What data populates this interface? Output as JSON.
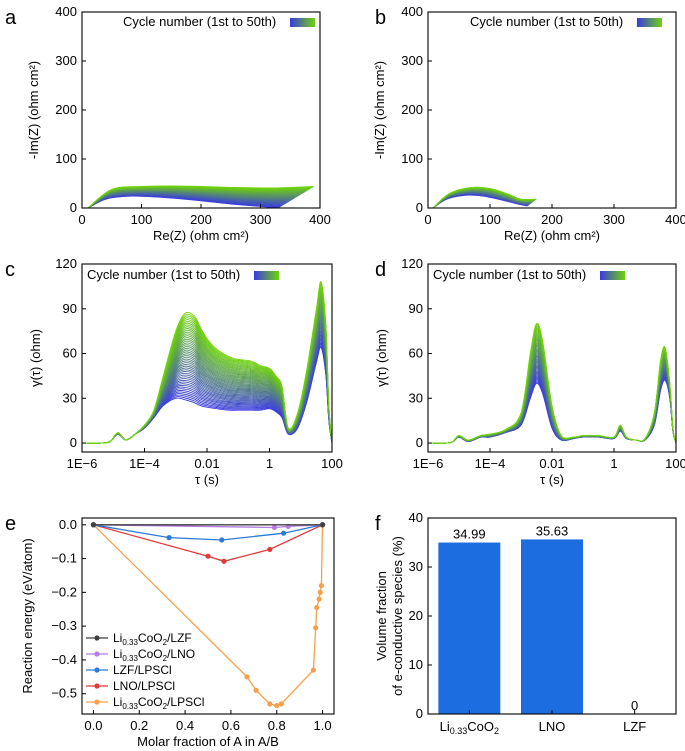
{
  "figure": {
    "colors": {
      "blue": "#3a3ae0",
      "green": "#6fd40a",
      "bar": "#1c6de0",
      "axis": "#000000"
    }
  },
  "chart_data": [
    {
      "id": "a",
      "panel_label": "a",
      "type": "line",
      "title": "",
      "xlabel": "Re(Z) (ohm cm²)",
      "ylabel": "-Im(Z) (ohm cm²)",
      "xlim": [
        0,
        400
      ],
      "ylim": [
        0,
        400
      ],
      "xticks": [
        0,
        100,
        200,
        300,
        400
      ],
      "yticks": [
        0,
        100,
        200,
        300,
        400
      ],
      "legend": "Cycle number (1st to 50th)",
      "legend_position": "top-right",
      "series_family": {
        "count": 50,
        "color_start": "#3a3ae0",
        "color_end": "#6fd40a",
        "first": {
          "x": [
            10,
            40,
            80,
            130,
            190,
            250,
            300,
            330
          ],
          "y": [
            0,
            18,
            24,
            22,
            16,
            8,
            3,
            0
          ]
        },
        "last": {
          "x": [
            10,
            50,
            100,
            150,
            200,
            260,
            320,
            390
          ],
          "y": [
            0,
            38,
            44,
            45,
            44,
            42,
            41,
            44
          ]
        }
      }
    },
    {
      "id": "b",
      "panel_label": "b",
      "type": "line",
      "title": "",
      "xlabel": "Re(Z) (ohm cm²)",
      "ylabel": "-Im(Z) (ohm cm²)",
      "xlim": [
        0,
        400
      ],
      "ylim": [
        0,
        400
      ],
      "xticks": [
        0,
        100,
        200,
        300,
        400
      ],
      "yticks": [
        0,
        100,
        200,
        300,
        400
      ],
      "legend": "Cycle number (1st to 50th)",
      "legend_position": "top-right",
      "series_family": {
        "count": 50,
        "color_start": "#3a3ae0",
        "color_end": "#6fd40a",
        "first": {
          "x": [
            8,
            30,
            60,
            90,
            120,
            145,
            160
          ],
          "y": [
            0,
            18,
            26,
            24,
            16,
            8,
            4
          ]
        },
        "last": {
          "x": [
            8,
            35,
            70,
            100,
            130,
            150,
            175
          ],
          "y": [
            0,
            30,
            42,
            40,
            28,
            18,
            18
          ]
        }
      }
    },
    {
      "id": "c",
      "panel_label": "c",
      "type": "line",
      "title": "",
      "xlabel": "τ (s)",
      "ylabel": "γ(τ) (ohm)",
      "xscale": "log",
      "xlim_log10": [
        -6,
        2
      ],
      "ylim": [
        -6,
        120
      ],
      "xticks": [
        "1E−6",
        "1E−4",
        "0.01",
        "1",
        "100"
      ],
      "yticks": [
        0,
        30,
        60,
        90,
        120
      ],
      "legend": "Cycle number (1st to 50th)",
      "legend_position": "top-left",
      "series_family": {
        "count": 50,
        "color_start": "#3a3ae0",
        "color_end": "#6fd40a",
        "log_tau": [
          -6,
          -5.4,
          -5.1,
          -4.85,
          -4.6,
          -4.3,
          -4,
          -3.7,
          -3.4,
          -3,
          -2.7,
          -2.4,
          -2.2,
          -2,
          -1.7,
          -1.3,
          -1,
          -0.6,
          -0.3,
          0,
          0.2,
          0.4,
          0.6,
          0.9,
          1.2,
          1.5,
          1.65,
          1.8,
          1.9,
          2
        ],
        "first": [
          0,
          0,
          1,
          6,
          2,
          6,
          10,
          17,
          25,
          30,
          29,
          27,
          25,
          24,
          23,
          22,
          22,
          22,
          22,
          23,
          21,
          17,
          6,
          10,
          28,
          54,
          64,
          46,
          15,
          0
        ],
        "last": [
          0,
          0,
          1,
          7,
          2,
          6,
          12,
          22,
          45,
          75,
          87,
          85,
          77,
          70,
          63,
          58,
          56,
          55,
          52,
          50,
          45,
          38,
          10,
          20,
          50,
          90,
          108,
          80,
          25,
          0
        ]
      }
    },
    {
      "id": "d",
      "panel_label": "d",
      "type": "line",
      "title": "",
      "xlabel": "τ (s)",
      "ylabel": "γ(τ) (ohm)",
      "xscale": "log",
      "xlim_log10": [
        -6,
        2
      ],
      "ylim": [
        -6,
        120
      ],
      "xticks": [
        "1E−6",
        "1E−4",
        "0.01",
        "1",
        "100"
      ],
      "yticks": [
        0,
        30,
        60,
        90,
        120
      ],
      "legend": "Cycle number (1st to 50th)",
      "legend_position": "top-left",
      "series_family": {
        "count": 50,
        "color_start": "#3a3ae0",
        "color_end": "#6fd40a",
        "log_tau": [
          -6,
          -5.4,
          -5.2,
          -5,
          -4.7,
          -4.3,
          -4,
          -3.5,
          -3,
          -2.7,
          -2.5,
          -2.3,
          -2,
          -1.7,
          -1.3,
          -1,
          -0.5,
          0,
          0.2,
          0.4,
          0.7,
          1,
          1.3,
          1.5,
          1.65,
          1.8,
          1.9,
          2
        ],
        "first": [
          0,
          0,
          1,
          4,
          1,
          4,
          4,
          7,
          12,
          30,
          40,
          33,
          10,
          2,
          3,
          4,
          4,
          3,
          8,
          3,
          2,
          2,
          12,
          35,
          42,
          30,
          8,
          0
        ],
        "last": [
          0,
          0,
          1,
          5,
          2,
          5,
          6,
          9,
          20,
          60,
          80,
          68,
          25,
          5,
          4,
          5,
          5,
          4,
          12,
          4,
          2,
          3,
          20,
          55,
          64,
          40,
          10,
          0
        ]
      }
    },
    {
      "id": "e",
      "panel_label": "e",
      "type": "line",
      "title": "",
      "xlabel": "Molar fraction of A in A/B",
      "ylabel": "Reaction energy (eV/atom)",
      "xlim": [
        -0.05,
        1.05
      ],
      "ylim": [
        -0.56,
        0.02
      ],
      "xticks": [
        0,
        0.2,
        0.4,
        0.6,
        0.8,
        1
      ],
      "xtick_labels": [
        "0.0",
        "0.2",
        "0.4",
        "0.6",
        "0.8",
        "1.0"
      ],
      "yticks": [
        0,
        -0.1,
        -0.2,
        -0.3,
        -0.4,
        -0.5
      ],
      "ytick_labels": [
        "0.0",
        "−0.1",
        "−0.2",
        "−0.3",
        "−0.4",
        "−0.5"
      ],
      "legend_position": "bottom-left",
      "series": [
        {
          "name": "Li0.33CoO2/LZF",
          "name_html": "Li<sub>0.33</sub>CoO<sub>2</sub>/LZF",
          "color": "#404040",
          "x": [
            0,
            1
          ],
          "y": [
            0,
            0
          ]
        },
        {
          "name": "Li0.33CoO2/LNO",
          "color": "#b57de0",
          "x": [
            0,
            0.79,
            0.85,
            1
          ],
          "y": [
            0,
            -0.008,
            -0.005,
            0
          ]
        },
        {
          "name": "LZF/LPSCl",
          "color": "#2a7ad6",
          "x": [
            0,
            0.33,
            0.56,
            0.83,
            1
          ],
          "y": [
            0,
            -0.038,
            -0.045,
            -0.025,
            0
          ]
        },
        {
          "name": "LNO/LPSCl",
          "color": "#e03a3a",
          "x": [
            0,
            0.5,
            0.57,
            0.77,
            1
          ],
          "y": [
            0,
            -0.093,
            -0.108,
            -0.073,
            0
          ]
        },
        {
          "name": "Li0.33CoO2/LPSCl",
          "color": "#f5a04a",
          "x": [
            0,
            0.67,
            0.71,
            0.77,
            0.8,
            0.82,
            0.96,
            0.97,
            0.975,
            0.985,
            0.99,
            0.995,
            1
          ],
          "y": [
            0,
            -0.45,
            -0.49,
            -0.53,
            -0.535,
            -0.53,
            -0.43,
            -0.305,
            -0.245,
            -0.22,
            -0.2,
            -0.18,
            0
          ]
        }
      ]
    },
    {
      "id": "f",
      "panel_label": "f",
      "type": "bar",
      "title": "",
      "xlabel": "",
      "ylabel_line1": "Volume fraction",
      "ylabel_line2": "of e-conductive species (%)",
      "ylim": [
        0,
        40
      ],
      "yticks": [
        0,
        10,
        20,
        30,
        40
      ],
      "categories": [
        "Li0.33CoO2",
        "LNO",
        "LZF"
      ],
      "values": [
        34.99,
        35.63,
        0
      ],
      "value_labels": [
        "34.99",
        "35.63",
        "0"
      ],
      "bar_color": "#1c6de0"
    }
  ]
}
